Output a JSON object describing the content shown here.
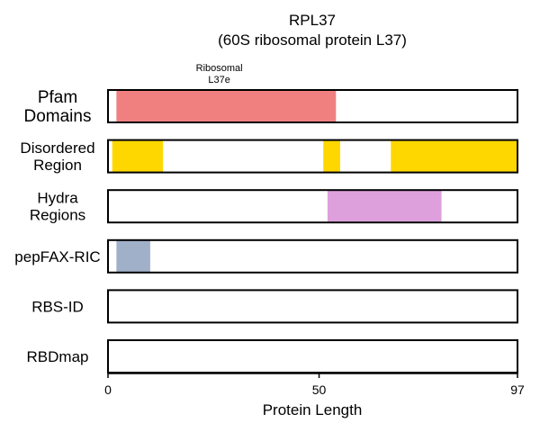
{
  "chart_data": {
    "type": "bar",
    "title": "RPL37",
    "subtitle": "(60S ribosomal protein L37)",
    "xlabel": "Protein Length",
    "xlim": [
      0,
      97
    ],
    "xticks": [
      "0",
      "50",
      "97"
    ],
    "tracks": [
      {
        "label_lines": [
          "Pfam",
          "Domains"
        ],
        "segments": [
          {
            "start": 2,
            "end": 54,
            "color": "#f08080",
            "annotation": [
              "Ribosomal",
              "L37e"
            ]
          }
        ]
      },
      {
        "label_lines": [
          "Disordered",
          "Region"
        ],
        "segments": [
          {
            "start": 1,
            "end": 13,
            "color": "#ffd700"
          },
          {
            "start": 51,
            "end": 55,
            "color": "#ffd700"
          },
          {
            "start": 67,
            "end": 97,
            "color": "#ffd700"
          }
        ]
      },
      {
        "label_lines": [
          "Hydra",
          "Regions"
        ],
        "segments": [
          {
            "start": 52,
            "end": 79,
            "color": "#dda0dd"
          }
        ]
      },
      {
        "label_lines": [
          "pepFAX-RIC"
        ],
        "segments": [
          {
            "start": 2,
            "end": 10,
            "color": "#a0b0c8"
          }
        ]
      },
      {
        "label_lines": [
          "RBS-ID"
        ],
        "segments": []
      },
      {
        "label_lines": [
          "RBDmap"
        ],
        "segments": []
      }
    ]
  }
}
